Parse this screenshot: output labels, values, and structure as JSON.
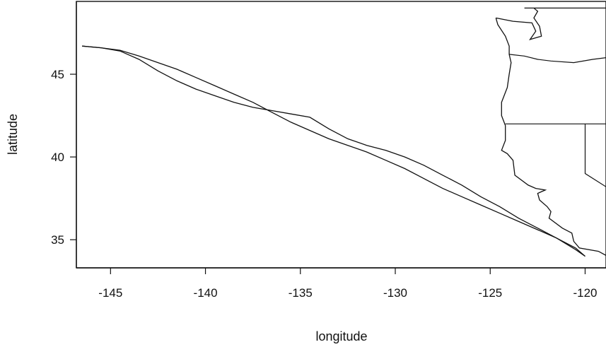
{
  "chart_data": {
    "type": "line",
    "title": "",
    "xlabel": "longitude",
    "ylabel": "latitude",
    "xlim": [
      -146.8,
      -118.9
    ],
    "ylim": [
      33.3,
      49.4
    ],
    "x_ticks": [
      -145,
      -140,
      -135,
      -130,
      -125,
      -120
    ],
    "y_ticks": [
      35,
      40,
      45
    ],
    "x_tick_labels": [
      "-145",
      "-140",
      "-135",
      "-130",
      "-125",
      "-120"
    ],
    "y_tick_labels": [
      "35",
      "40",
      "45"
    ],
    "grid": false,
    "legend": "none",
    "colors": {
      "ink": "#111111",
      "background": "#ffffff"
    },
    "series": [
      {
        "points": [
          [
            -146.5,
            46.7
          ],
          [
            -145.5,
            46.6
          ],
          [
            -144.5,
            46.45
          ],
          [
            -143.5,
            46.1
          ],
          [
            -142.5,
            45.7
          ],
          [
            -141.5,
            45.3
          ],
          [
            -140.5,
            44.8
          ],
          [
            -139.5,
            44.3
          ],
          [
            -138.5,
            43.8
          ],
          [
            -137.5,
            43.3
          ],
          [
            -136.5,
            42.7
          ],
          [
            -135.5,
            42.1
          ],
          [
            -134.5,
            41.6
          ],
          [
            -133.5,
            41.1
          ],
          [
            -132.5,
            40.7
          ],
          [
            -131.5,
            40.3
          ],
          [
            -130.5,
            39.8
          ],
          [
            -129.5,
            39.3
          ],
          [
            -128.5,
            38.7
          ],
          [
            -127.5,
            38.1
          ],
          [
            -126.5,
            37.6
          ],
          [
            -125.5,
            37.1
          ],
          [
            -124.5,
            36.6
          ],
          [
            -123.5,
            36.1
          ],
          [
            -122.5,
            35.6
          ],
          [
            -121.5,
            35.1
          ],
          [
            -120.5,
            34.5
          ],
          [
            -120.0,
            34.0
          ]
        ]
      },
      {
        "points": [
          [
            -146.5,
            46.7
          ],
          [
            -145.5,
            46.6
          ],
          [
            -144.5,
            46.4
          ],
          [
            -143.5,
            45.9
          ],
          [
            -142.5,
            45.2
          ],
          [
            -141.5,
            44.6
          ],
          [
            -140.5,
            44.1
          ],
          [
            -139.5,
            43.7
          ],
          [
            -138.5,
            43.3
          ],
          [
            -137.5,
            43.0
          ],
          [
            -136.5,
            42.8
          ],
          [
            -135.5,
            42.6
          ],
          [
            -134.5,
            42.4
          ],
          [
            -133.5,
            41.7
          ],
          [
            -132.5,
            41.1
          ],
          [
            -131.5,
            40.7
          ],
          [
            -130.5,
            40.4
          ],
          [
            -129.5,
            40.0
          ],
          [
            -128.5,
            39.5
          ],
          [
            -127.5,
            38.9
          ],
          [
            -126.5,
            38.3
          ],
          [
            -125.5,
            37.6
          ],
          [
            -124.5,
            37.0
          ],
          [
            -123.5,
            36.3
          ],
          [
            -122.5,
            35.7
          ],
          [
            -121.5,
            35.1
          ],
          [
            -120.5,
            34.4
          ],
          [
            -120.0,
            34.0
          ]
        ]
      }
    ],
    "coastline": {
      "points": [
        [
          -118.9,
          34.05
        ],
        [
          -119.3,
          34.3
        ],
        [
          -120.3,
          34.5
        ],
        [
          -120.6,
          34.9
        ],
        [
          -120.7,
          35.4
        ],
        [
          -121.2,
          35.7
        ],
        [
          -121.9,
          36.3
        ],
        [
          -121.8,
          36.7
        ],
        [
          -122.0,
          37.0
        ],
        [
          -122.4,
          37.4
        ],
        [
          -122.5,
          37.8
        ],
        [
          -122.1,
          38.0
        ],
        [
          -122.6,
          38.1
        ],
        [
          -123.0,
          38.3
        ],
        [
          -123.7,
          38.9
        ],
        [
          -123.8,
          39.8
        ],
        [
          -124.1,
          40.2
        ],
        [
          -124.4,
          40.4
        ],
        [
          -124.2,
          41.0
        ],
        [
          -124.2,
          41.9
        ],
        [
          -124.4,
          42.5
        ],
        [
          -124.4,
          43.3
        ],
        [
          -124.1,
          44.2
        ],
        [
          -124.0,
          45.0
        ],
        [
          -123.9,
          45.7
        ],
        [
          -124.0,
          46.2
        ],
        [
          -124.0,
          46.7
        ],
        [
          -124.2,
          47.3
        ],
        [
          -124.6,
          48.0
        ],
        [
          -124.7,
          48.4
        ]
      ]
    },
    "puget_sound": {
      "points": [
        [
          -124.7,
          48.4
        ],
        [
          -123.8,
          48.2
        ],
        [
          -122.8,
          48.1
        ],
        [
          -122.6,
          47.6
        ],
        [
          -122.9,
          47.1
        ],
        [
          -122.3,
          47.3
        ],
        [
          -122.4,
          47.9
        ],
        [
          -122.7,
          48.4
        ],
        [
          -122.5,
          48.8
        ],
        [
          -122.7,
          49.0
        ]
      ]
    },
    "borders": [
      {
        "points": [
          [
            -123.2,
            49.0
          ],
          [
            -118.9,
            49.0
          ]
        ]
      },
      {
        "points": [
          [
            -124.0,
            46.2
          ],
          [
            -123.2,
            46.1
          ],
          [
            -122.5,
            45.9
          ],
          [
            -121.8,
            45.8
          ],
          [
            -120.6,
            45.7
          ],
          [
            -119.6,
            45.9
          ],
          [
            -118.9,
            46.0
          ]
        ]
      },
      {
        "points": [
          [
            -124.2,
            42.0
          ],
          [
            -118.9,
            42.0
          ]
        ]
      },
      {
        "points": [
          [
            -120.0,
            42.0
          ],
          [
            -120.0,
            39.0
          ],
          [
            -118.9,
            38.2
          ]
        ]
      }
    ]
  }
}
